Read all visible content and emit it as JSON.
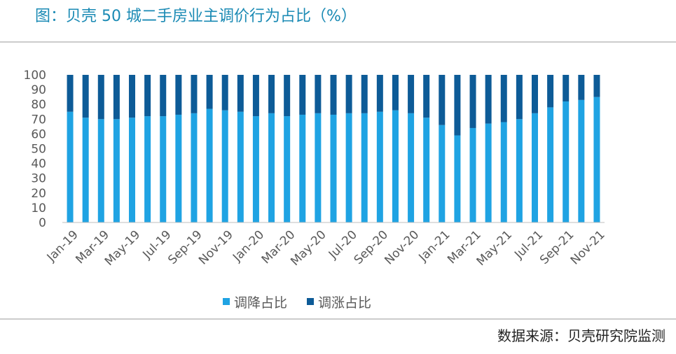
{
  "chart_data": {
    "type": "stacked_bar",
    "title": "图：贝壳 50 城二手房业主调价行为占比（%）",
    "source": "数据来源：贝壳研究院监测",
    "categories": [
      "Jan-19",
      null,
      "Mar-19",
      null,
      "May-19",
      null,
      "Jul-19",
      null,
      "Sep-19",
      null,
      "Nov-19",
      null,
      "Jan-20",
      null,
      "Mar-20",
      null,
      "May-20",
      null,
      "Jul-20",
      null,
      "Sep-20",
      null,
      "Nov-20",
      null,
      "Jan-21",
      null,
      "Mar-21",
      null,
      "May-21",
      null,
      "Jul-21",
      null,
      "Sep-21",
      null,
      "Nov-21"
    ],
    "series": [
      {
        "name": "调降占比",
        "color": "#1fa3e3",
        "values": [
          75,
          71,
          70,
          70,
          71,
          72,
          72,
          73,
          74,
          77,
          76,
          75,
          72,
          74,
          72,
          73,
          74,
          73,
          74,
          74,
          75,
          76,
          74,
          71,
          66,
          59,
          64,
          67,
          68,
          70,
          74,
          78,
          82,
          83,
          85
        ]
      },
      {
        "name": "调涨占比",
        "color": "#0d5b97",
        "values": [
          25,
          29,
          30,
          30,
          29,
          28,
          28,
          27,
          26,
          23,
          24,
          25,
          28,
          26,
          28,
          27,
          26,
          27,
          26,
          26,
          25,
          24,
          26,
          29,
          34,
          41,
          36,
          33,
          32,
          30,
          26,
          22,
          18,
          17,
          15
        ]
      }
    ],
    "ylim": [
      0,
      100
    ],
    "yticks": [
      0,
      10,
      20,
      30,
      40,
      50,
      60,
      70,
      80,
      90,
      100
    ],
    "legend": "bottom"
  }
}
